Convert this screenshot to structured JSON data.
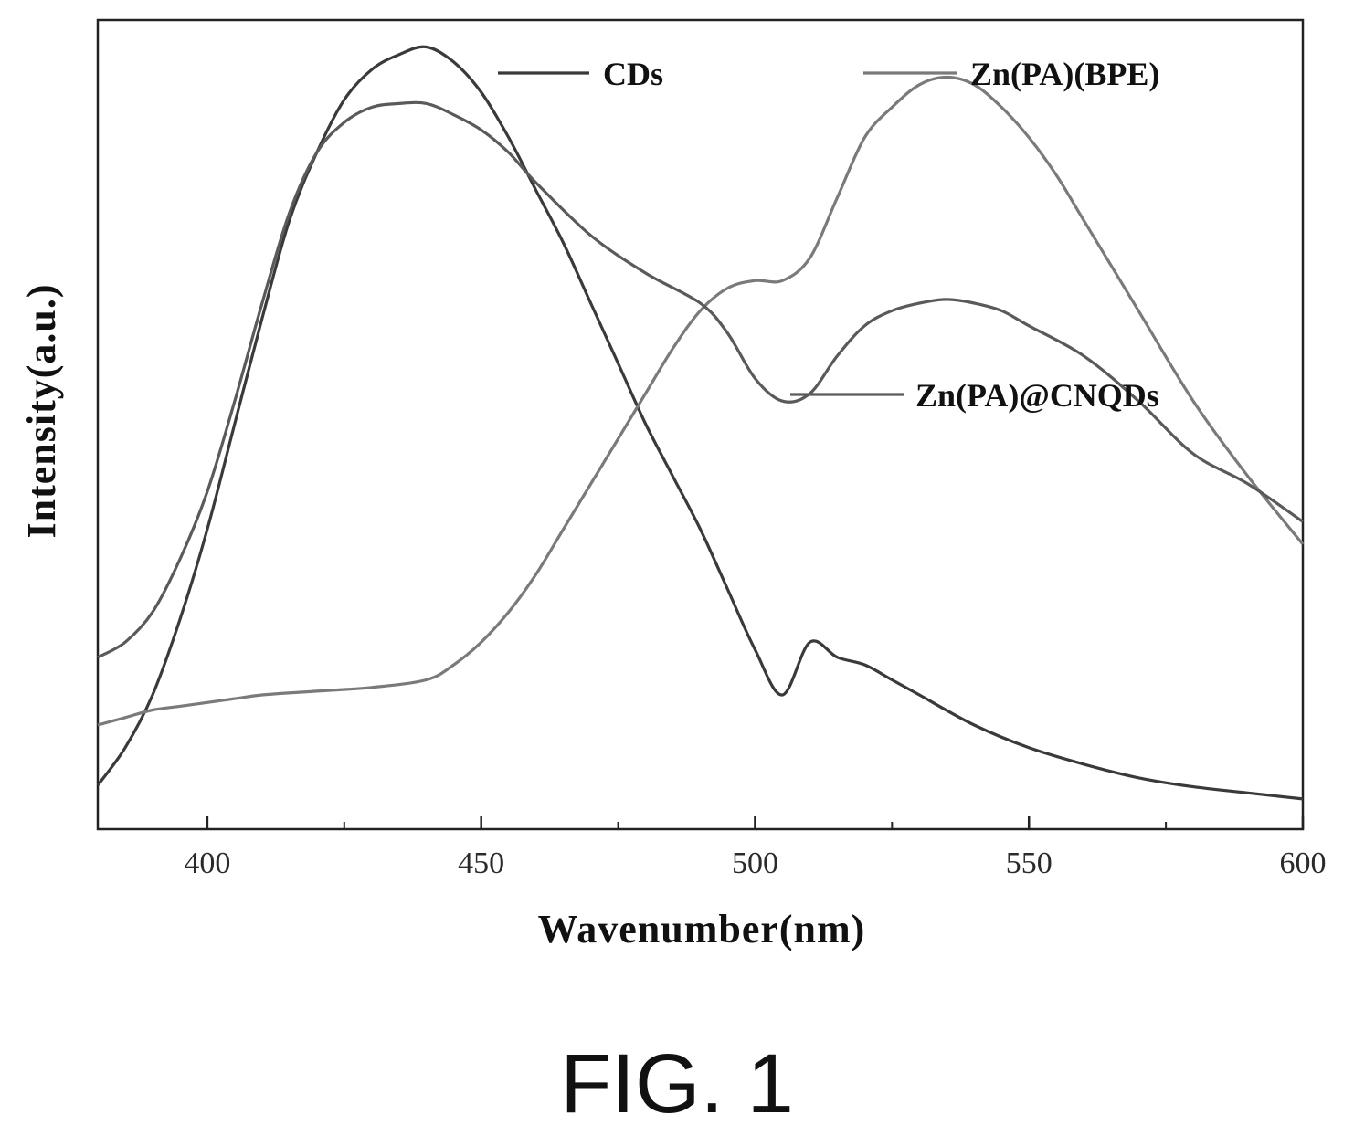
{
  "chart_data": {
    "type": "line",
    "title": "",
    "xlabel": "Wavenumber(nm)",
    "ylabel": "Intensity(a.u.)",
    "xlim": [
      380,
      600
    ],
    "ylim": [
      0,
      1
    ],
    "x_ticks": [
      400,
      450,
      500,
      550,
      600
    ],
    "x_minor_ticks": [
      425,
      475,
      525,
      575
    ],
    "y_ticks": [],
    "grid": false,
    "series": [
      {
        "name": "CDs",
        "color": "#3a3a3a",
        "x": [
          380,
          385,
          390,
          395,
          400,
          405,
          410,
          415,
          420,
          425,
          430,
          435,
          440,
          445,
          450,
          455,
          460,
          465,
          470,
          475,
          480,
          485,
          490,
          495,
          500,
          505,
          510,
          515,
          520,
          525,
          530,
          540,
          550,
          560,
          570,
          580,
          590,
          600
        ],
        "y": [
          0.04,
          0.09,
          0.16,
          0.26,
          0.38,
          0.52,
          0.66,
          0.79,
          0.88,
          0.95,
          0.99,
          1.01,
          1.02,
          1.0,
          0.96,
          0.9,
          0.83,
          0.76,
          0.68,
          0.6,
          0.52,
          0.45,
          0.38,
          0.3,
          0.22,
          0.16,
          0.23,
          0.21,
          0.2,
          0.18,
          0.16,
          0.12,
          0.09,
          0.068,
          0.05,
          0.038,
          0.03,
          0.022
        ]
      },
      {
        "name": "Zn(PA)(BPE)",
        "color": "#7a7a7a",
        "x": [
          380,
          385,
          390,
          395,
          400,
          405,
          410,
          420,
          430,
          440,
          445,
          450,
          455,
          460,
          465,
          470,
          475,
          480,
          485,
          490,
          495,
          500,
          505,
          510,
          515,
          520,
          525,
          530,
          535,
          540,
          545,
          550,
          555,
          560,
          570,
          580,
          590,
          600
        ],
        "y": [
          0.12,
          0.13,
          0.14,
          0.145,
          0.15,
          0.155,
          0.16,
          0.165,
          0.17,
          0.18,
          0.2,
          0.23,
          0.27,
          0.32,
          0.38,
          0.44,
          0.5,
          0.56,
          0.62,
          0.67,
          0.7,
          0.71,
          0.71,
          0.74,
          0.82,
          0.9,
          0.94,
          0.97,
          0.98,
          0.97,
          0.94,
          0.9,
          0.85,
          0.79,
          0.67,
          0.55,
          0.45,
          0.36
        ]
      },
      {
        "name": "Zn(PA)@CNQDs",
        "color": "#5a5a5a",
        "x": [
          380,
          385,
          390,
          395,
          400,
          405,
          410,
          415,
          420,
          425,
          430,
          435,
          440,
          445,
          450,
          455,
          460,
          470,
          480,
          490,
          495,
          500,
          505,
          510,
          515,
          520,
          525,
          530,
          535,
          540,
          545,
          550,
          560,
          570,
          580,
          590,
          600
        ],
        "y": [
          0.21,
          0.23,
          0.27,
          0.34,
          0.43,
          0.55,
          0.68,
          0.8,
          0.88,
          0.92,
          0.94,
          0.945,
          0.945,
          0.93,
          0.91,
          0.88,
          0.84,
          0.77,
          0.72,
          0.68,
          0.64,
          0.58,
          0.55,
          0.56,
          0.61,
          0.65,
          0.67,
          0.68,
          0.685,
          0.68,
          0.67,
          0.65,
          0.61,
          0.55,
          0.48,
          0.44,
          0.39
        ]
      }
    ],
    "legend": [
      {
        "label": "CDs",
        "placement": "top-center"
      },
      {
        "label": "Zn(PA)(BPE)",
        "placement": "top-right"
      },
      {
        "label": "Zn(PA)@CNQDs",
        "placement": "middle-right"
      }
    ]
  },
  "caption": "FIG. 1"
}
